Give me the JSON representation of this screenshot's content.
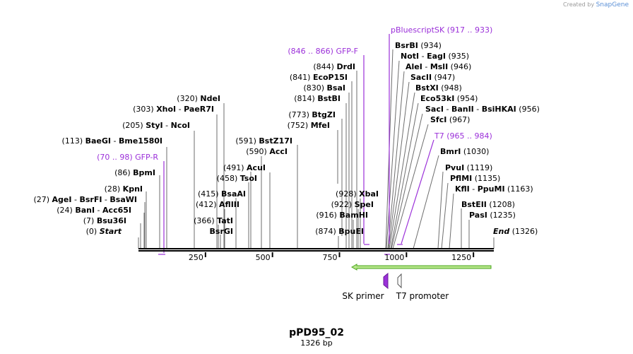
{
  "brand": {
    "prefix": "Created by",
    "name": "SnapGene"
  },
  "map": {
    "name": "pPD95_02",
    "length_label": "1326 bp",
    "length": 1326,
    "start_label": "Start",
    "end_label": "End",
    "start_pos": "(0)",
    "end_pos": "(1326)"
  },
  "ticks": [
    {
      "value": 250,
      "label": "250"
    },
    {
      "value": 500,
      "label": "500"
    },
    {
      "value": 750,
      "label": "750"
    },
    {
      "value": 1000,
      "label": "1000"
    },
    {
      "value": 1250,
      "label": "1250"
    }
  ],
  "site_labels": [
    {
      "pos": "(27)",
      "name": "AgeI",
      "extra": [
        "BsrFI",
        "BsaWI"
      ],
      "coord": 27
    },
    {
      "pos": "(24)",
      "name": "BanI",
      "extra": [
        "Acc65I"
      ],
      "coord": 24
    },
    {
      "pos": "(7)",
      "name": "Bsu36I",
      "extra": [],
      "coord": 7
    },
    {
      "pos": "(28)",
      "name": "KpnI",
      "extra": [],
      "coord": 28
    },
    {
      "pos": "(86)",
      "name": "BpmI",
      "extra": [],
      "coord": 86
    },
    {
      "pos": "(113)",
      "name": "BaeGI",
      "extra": [
        "Bme1580I"
      ],
      "coord": 113
    },
    {
      "pos": "(205)",
      "name": "StyI",
      "extra": [
        "NcoI"
      ],
      "coord": 205
    },
    {
      "pos": "(303)",
      "name": "XhoI",
      "extra": [
        "PaeR7I"
      ],
      "coord": 303
    },
    {
      "pos": "(320)",
      "name": "NdeI",
      "extra": [],
      "coord": 320
    },
    {
      "pos": "(366)",
      "name": "TatI",
      "extra": [],
      "coord": 366
    },
    {
      "pos": "",
      "name": "BsrGI",
      "extra": [],
      "coord": 366
    },
    {
      "pos": "(412)",
      "name": "AflIII",
      "extra": [],
      "coord": 412
    },
    {
      "pos": "(415)",
      "name": "BsaAI",
      "extra": [],
      "coord": 415
    },
    {
      "pos": "(458)",
      "name": "TsoI",
      "extra": [],
      "coord": 458
    },
    {
      "pos": "(491)",
      "name": "AcuI",
      "extra": [],
      "coord": 491
    },
    {
      "pos": "(590)",
      "name": "AccI",
      "extra": [],
      "coord": 590
    },
    {
      "pos": "(591)",
      "name": "BstZ17I",
      "extra": [],
      "coord": 591
    },
    {
      "pos": "(752)",
      "name": "MfeI",
      "extra": [],
      "coord": 752
    },
    {
      "pos": "(773)",
      "name": "BtgZI",
      "extra": [],
      "coord": 773
    },
    {
      "pos": "(814)",
      "name": "BstBI",
      "extra": [],
      "coord": 814
    },
    {
      "pos": "(830)",
      "name": "BsaI",
      "extra": [],
      "coord": 830
    },
    {
      "pos": "(841)",
      "name": "EcoP15I",
      "extra": [],
      "coord": 841
    },
    {
      "pos": "(844)",
      "name": "DrdI",
      "extra": [],
      "coord": 844
    },
    {
      "pos": "(874)",
      "name": "BpuEI",
      "extra": [],
      "coord": 874
    },
    {
      "pos": "(916)",
      "name": "BamHI",
      "extra": [],
      "coord": 916
    },
    {
      "pos": "(922)",
      "name": "SpeI",
      "extra": [],
      "coord": 922
    },
    {
      "pos": "(928)",
      "name": "XbaI",
      "extra": [],
      "coord": 928
    },
    {
      "pos": "(934)",
      "name": "BsrBI",
      "extra": [],
      "coord": 934
    },
    {
      "pos": "(935)",
      "name": "NotI",
      "extra": [
        "EagI"
      ],
      "coord": 935
    },
    {
      "pos": "(946)",
      "name": "AleI",
      "extra": [
        "MslI"
      ],
      "coord": 946
    },
    {
      "pos": "(947)",
      "name": "SacII",
      "extra": [],
      "coord": 947
    },
    {
      "pos": "(948)",
      "name": "BstXI",
      "extra": [],
      "coord": 948
    },
    {
      "pos": "(954)",
      "name": "Eco53kI",
      "extra": [],
      "coord": 954
    },
    {
      "pos": "(956)",
      "name": "SacI",
      "extra": [
        "BanII",
        "BsiHKAI"
      ],
      "coord": 956
    },
    {
      "pos": "(967)",
      "name": "SfcI",
      "extra": [],
      "coord": 967
    },
    {
      "pos": "(1030)",
      "name": "BmrI",
      "extra": [],
      "coord": 1030
    },
    {
      "pos": "(1119)",
      "name": "PvuI",
      "extra": [],
      "coord": 1119
    },
    {
      "pos": "(1135)",
      "name": "PflMI",
      "extra": [],
      "coord": 1135
    },
    {
      "pos": "(1163)",
      "name": "KflI",
      "extra": [
        "PpuMI"
      ],
      "coord": 1163
    },
    {
      "pos": "(1208)",
      "name": "BstEII",
      "extra": [],
      "coord": 1208
    },
    {
      "pos": "(1235)",
      "name": "PasI",
      "extra": [],
      "coord": 1235
    }
  ],
  "primers": [
    {
      "name": "GFP-R",
      "range": "(70 .. 98)"
    },
    {
      "name": "GFP-F",
      "range": "(846 .. 866)"
    },
    {
      "name": "pBluescriptSK",
      "range": "(917 .. 933)"
    },
    {
      "name": "T7",
      "range": "(965 .. 984)"
    }
  ],
  "features": [
    {
      "name": "SK primer"
    },
    {
      "name": "T7 promoter"
    }
  ],
  "colors": {
    "primer": "#9b30d9",
    "arrow_fill": "#b6e68a",
    "arrow_stroke": "#4aa61c",
    "line": "#6e6e6e"
  }
}
